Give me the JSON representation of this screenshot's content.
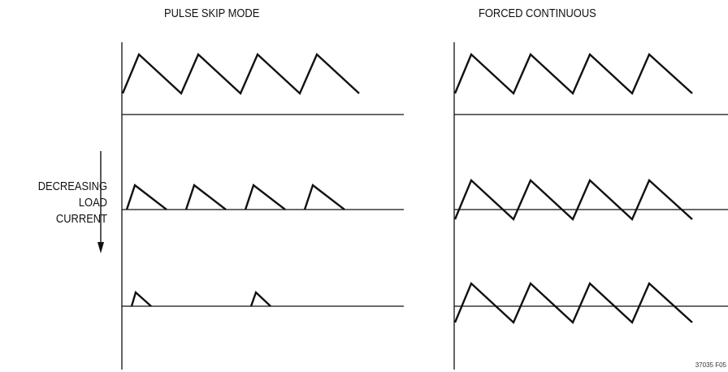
{
  "titles": {
    "left": "PULSE SKIP MODE",
    "right": "FORCED CONTINUOUS"
  },
  "arrow_label": {
    "line1": "DECREASING",
    "line2": "LOAD",
    "line3": "CURRENT"
  },
  "figure_code": "37035 F05",
  "colors": {
    "background": "#ffffff",
    "line": "#111111"
  }
}
